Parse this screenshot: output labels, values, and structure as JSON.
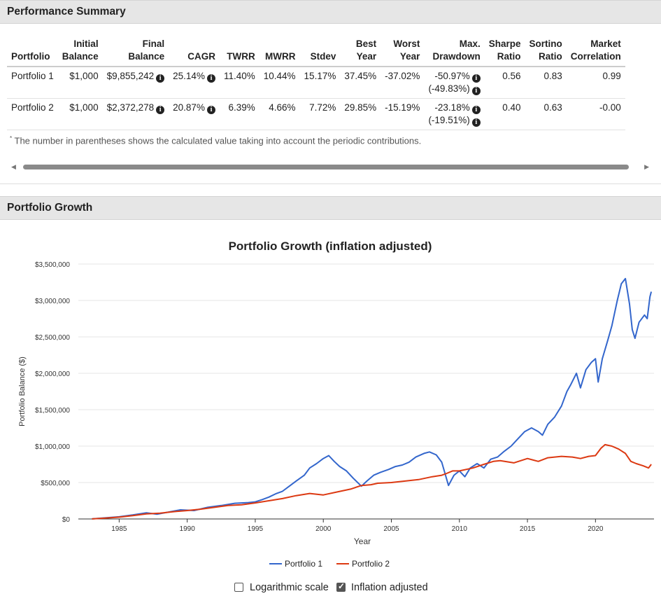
{
  "performance_summary": {
    "title": "Performance Summary",
    "columns": [
      {
        "line1": "",
        "line2": "Portfolio"
      },
      {
        "line1": "Initial",
        "line2": "Balance"
      },
      {
        "line1": "Final",
        "line2": "Balance"
      },
      {
        "line1": "",
        "line2": "CAGR"
      },
      {
        "line1": "",
        "line2": "TWRR"
      },
      {
        "line1": "",
        "line2": "MWRR"
      },
      {
        "line1": "",
        "line2": "Stdev"
      },
      {
        "line1": "Best",
        "line2": "Year"
      },
      {
        "line1": "Worst",
        "line2": "Year"
      },
      {
        "line1": "Max.",
        "line2": "Drawdown"
      },
      {
        "line1": "Sharpe",
        "line2": "Ratio"
      },
      {
        "line1": "Sortino",
        "line2": "Ratio"
      },
      {
        "line1": "Market",
        "line2": "Correlation"
      }
    ],
    "rows": [
      {
        "portfolio": "Portfolio 1",
        "initial_balance": "$1,000",
        "final_balance": "$9,855,242",
        "cagr": "25.14%",
        "twrr": "11.40%",
        "mwrr": "10.44%",
        "stdev": "15.17%",
        "best_year": "37.45%",
        "worst_year": "-37.02%",
        "max_drawdown": "-50.97%",
        "max_drawdown_contrib": "(-49.83%)",
        "sharpe": "0.56",
        "sortino": "0.83",
        "market_corr": "0.99"
      },
      {
        "portfolio": "Portfolio 2",
        "initial_balance": "$1,000",
        "final_balance": "$2,372,278",
        "cagr": "20.87%",
        "twrr": "6.39%",
        "mwrr": "4.66%",
        "stdev": "7.72%",
        "best_year": "29.85%",
        "worst_year": "-15.19%",
        "max_drawdown": "-23.18%",
        "max_drawdown_contrib": "(-19.51%)",
        "sharpe": "0.40",
        "sortino": "0.63",
        "market_corr": "-0.00"
      }
    ],
    "info_icon": "i",
    "footnote_mark": "*",
    "footnote": "The number in parentheses shows the calculated value taking into account the periodic contributions.",
    "scroll_left_icon": "◀",
    "scroll_right_icon": "▶"
  },
  "portfolio_growth": {
    "title": "Portfolio Growth",
    "log_scale_label": "Logarithmic scale",
    "log_scale_checked": false,
    "inflation_label": "Inflation adjusted",
    "inflation_checked": true
  },
  "chart_data": {
    "type": "line",
    "title": "Portfolio Growth (inflation adjusted)",
    "xlabel": "Year",
    "ylabel": "Portfolio Balance ($)",
    "xlim": [
      1982.0,
      2024.3
    ],
    "ylim": [
      0,
      3500000
    ],
    "x_ticks": [
      1985,
      1990,
      1995,
      2000,
      2005,
      2010,
      2015,
      2020
    ],
    "y_ticks": [
      0,
      500000,
      1000000,
      1500000,
      2000000,
      2500000,
      3000000,
      3500000
    ],
    "y_tick_labels": [
      "$0",
      "$500,000",
      "$1,000,000",
      "$1,500,000",
      "$2,000,000",
      "$2,500,000",
      "$3,000,000",
      "$3,500,000"
    ],
    "grid": true,
    "legend_position": "bottom-center",
    "series": [
      {
        "name": "Portfolio 1",
        "color": "#3366cc",
        "points": [
          [
            1983.0,
            1000
          ],
          [
            1984.0,
            15000
          ],
          [
            1985.0,
            30000
          ],
          [
            1986.0,
            55000
          ],
          [
            1987.0,
            85000
          ],
          [
            1987.8,
            65000
          ],
          [
            1988.5,
            90000
          ],
          [
            1989.5,
            125000
          ],
          [
            1990.5,
            115000
          ],
          [
            1991.5,
            160000
          ],
          [
            1992.5,
            185000
          ],
          [
            1993.5,
            215000
          ],
          [
            1994.5,
            225000
          ],
          [
            1995.0,
            235000
          ],
          [
            1995.5,
            265000
          ],
          [
            1996.0,
            300000
          ],
          [
            1996.5,
            345000
          ],
          [
            1997.0,
            380000
          ],
          [
            1997.5,
            450000
          ],
          [
            1998.0,
            520000
          ],
          [
            1998.6,
            600000
          ],
          [
            1999.0,
            700000
          ],
          [
            1999.5,
            760000
          ],
          [
            2000.0,
            830000
          ],
          [
            2000.4,
            870000
          ],
          [
            2000.8,
            790000
          ],
          [
            2001.2,
            720000
          ],
          [
            2001.7,
            660000
          ],
          [
            2002.2,
            560000
          ],
          [
            2002.8,
            450000
          ],
          [
            2003.2,
            520000
          ],
          [
            2003.7,
            600000
          ],
          [
            2004.2,
            640000
          ],
          [
            2004.8,
            680000
          ],
          [
            2005.3,
            720000
          ],
          [
            2005.8,
            740000
          ],
          [
            2006.3,
            780000
          ],
          [
            2006.8,
            850000
          ],
          [
            2007.4,
            900000
          ],
          [
            2007.8,
            920000
          ],
          [
            2008.3,
            880000
          ],
          [
            2008.7,
            780000
          ],
          [
            2009.2,
            460000
          ],
          [
            2009.6,
            600000
          ],
          [
            2010.0,
            660000
          ],
          [
            2010.4,
            580000
          ],
          [
            2010.8,
            700000
          ],
          [
            2011.3,
            760000
          ],
          [
            2011.8,
            700000
          ],
          [
            2012.3,
            820000
          ],
          [
            2012.8,
            850000
          ],
          [
            2013.3,
            930000
          ],
          [
            2013.8,
            1000000
          ],
          [
            2014.3,
            1100000
          ],
          [
            2014.8,
            1200000
          ],
          [
            2015.3,
            1250000
          ],
          [
            2015.8,
            1200000
          ],
          [
            2016.1,
            1150000
          ],
          [
            2016.5,
            1300000
          ],
          [
            2017.0,
            1400000
          ],
          [
            2017.5,
            1550000
          ],
          [
            2017.9,
            1750000
          ],
          [
            2018.2,
            1850000
          ],
          [
            2018.6,
            2000000
          ],
          [
            2018.9,
            1800000
          ],
          [
            2019.3,
            2050000
          ],
          [
            2019.7,
            2150000
          ],
          [
            2020.0,
            2200000
          ],
          [
            2020.2,
            1880000
          ],
          [
            2020.5,
            2200000
          ],
          [
            2020.9,
            2450000
          ],
          [
            2021.2,
            2650000
          ],
          [
            2021.6,
            3000000
          ],
          [
            2021.9,
            3230000
          ],
          [
            2022.2,
            3300000
          ],
          [
            2022.5,
            2950000
          ],
          [
            2022.7,
            2600000
          ],
          [
            2022.9,
            2480000
          ],
          [
            2023.2,
            2700000
          ],
          [
            2023.6,
            2800000
          ],
          [
            2023.8,
            2750000
          ],
          [
            2024.0,
            3050000
          ],
          [
            2024.1,
            3120000
          ]
        ]
      },
      {
        "name": "Portfolio 2",
        "color": "#dc3912",
        "points": [
          [
            1983.0,
            1000
          ],
          [
            1984.0,
            12000
          ],
          [
            1985.0,
            25000
          ],
          [
            1986.0,
            45000
          ],
          [
            1987.0,
            70000
          ],
          [
            1988.0,
            80000
          ],
          [
            1989.0,
            100000
          ],
          [
            1990.0,
            115000
          ],
          [
            1991.0,
            135000
          ],
          [
            1992.0,
            160000
          ],
          [
            1993.0,
            185000
          ],
          [
            1994.0,
            195000
          ],
          [
            1995.0,
            220000
          ],
          [
            1996.0,
            250000
          ],
          [
            1997.0,
            280000
          ],
          [
            1998.0,
            320000
          ],
          [
            1999.0,
            350000
          ],
          [
            2000.0,
            330000
          ],
          [
            2001.0,
            370000
          ],
          [
            2002.0,
            410000
          ],
          [
            2002.8,
            460000
          ],
          [
            2003.5,
            470000
          ],
          [
            2004.0,
            490000
          ],
          [
            2005.0,
            500000
          ],
          [
            2006.0,
            520000
          ],
          [
            2007.0,
            540000
          ],
          [
            2008.0,
            580000
          ],
          [
            2008.7,
            600000
          ],
          [
            2009.0,
            620000
          ],
          [
            2009.5,
            660000
          ],
          [
            2010.0,
            660000
          ],
          [
            2011.0,
            700000
          ],
          [
            2011.8,
            750000
          ],
          [
            2012.5,
            790000
          ],
          [
            2013.0,
            800000
          ],
          [
            2014.0,
            770000
          ],
          [
            2015.0,
            830000
          ],
          [
            2015.8,
            790000
          ],
          [
            2016.5,
            840000
          ],
          [
            2017.5,
            860000
          ],
          [
            2018.3,
            850000
          ],
          [
            2018.9,
            830000
          ],
          [
            2019.5,
            860000
          ],
          [
            2020.0,
            870000
          ],
          [
            2020.4,
            970000
          ],
          [
            2020.7,
            1020000
          ],
          [
            2021.2,
            1000000
          ],
          [
            2021.7,
            960000
          ],
          [
            2022.2,
            900000
          ],
          [
            2022.6,
            790000
          ],
          [
            2023.0,
            760000
          ],
          [
            2023.5,
            730000
          ],
          [
            2023.9,
            700000
          ],
          [
            2024.1,
            750000
          ]
        ]
      }
    ]
  }
}
